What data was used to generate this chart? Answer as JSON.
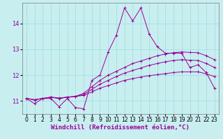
{
  "xlabel": "Windchill (Refroidissement éolien,°C)",
  "background_color": "#c8eef0",
  "line_color": "#990099",
  "grid_color": "#99dddd",
  "xlim": [
    -0.5,
    23.5
  ],
  "ylim": [
    10.5,
    14.8
  ],
  "yticks": [
    11,
    12,
    13,
    14
  ],
  "xticks": [
    0,
    1,
    2,
    3,
    4,
    5,
    6,
    7,
    8,
    9,
    10,
    11,
    12,
    13,
    14,
    15,
    16,
    17,
    18,
    19,
    20,
    21,
    22,
    23
  ],
  "series": [
    {
      "x": [
        0,
        1,
        2,
        3,
        4,
        5,
        6,
        7,
        8,
        9,
        10,
        11,
        12,
        13,
        14,
        15,
        16,
        17,
        18,
        19,
        20,
        21,
        22,
        23
      ],
      "y": [
        11.1,
        10.9,
        11.1,
        11.1,
        10.78,
        11.1,
        10.75,
        10.7,
        11.8,
        12.0,
        12.9,
        13.55,
        14.6,
        14.1,
        14.6,
        13.6,
        13.1,
        12.85,
        12.85,
        12.85,
        12.3,
        12.4,
        12.1,
        11.5
      ]
    },
    {
      "x": [
        0,
        1,
        2,
        3,
        4,
        5,
        6,
        7,
        8,
        9,
        10,
        11,
        12,
        13,
        14,
        15,
        16,
        17,
        18,
        19,
        20,
        21,
        22,
        23
      ],
      "y": [
        11.1,
        11.05,
        11.1,
        11.15,
        11.1,
        11.15,
        11.18,
        11.3,
        11.55,
        11.8,
        12.0,
        12.15,
        12.3,
        12.45,
        12.55,
        12.65,
        12.75,
        12.82,
        12.87,
        12.9,
        12.88,
        12.87,
        12.75,
        12.6
      ]
    },
    {
      "x": [
        0,
        1,
        2,
        3,
        4,
        5,
        6,
        7,
        8,
        9,
        10,
        11,
        12,
        13,
        14,
        15,
        16,
        17,
        18,
        19,
        20,
        21,
        22,
        23
      ],
      "y": [
        11.1,
        11.05,
        11.1,
        11.15,
        11.1,
        11.15,
        11.18,
        11.25,
        11.45,
        11.65,
        11.8,
        11.95,
        12.08,
        12.18,
        12.28,
        12.38,
        12.45,
        12.52,
        12.57,
        12.6,
        12.58,
        12.57,
        12.45,
        12.3
      ]
    },
    {
      "x": [
        0,
        1,
        2,
        3,
        4,
        5,
        6,
        7,
        8,
        9,
        10,
        11,
        12,
        13,
        14,
        15,
        16,
        17,
        18,
        19,
        20,
        21,
        22,
        23
      ],
      "y": [
        11.1,
        11.05,
        11.1,
        11.15,
        11.12,
        11.15,
        11.18,
        11.22,
        11.35,
        11.5,
        11.6,
        11.7,
        11.8,
        11.87,
        11.93,
        11.98,
        12.02,
        12.06,
        12.1,
        12.13,
        12.13,
        12.13,
        12.05,
        11.95
      ]
    }
  ],
  "xlabel_fontsize": 6.5,
  "tick_fontsize": 5.5
}
